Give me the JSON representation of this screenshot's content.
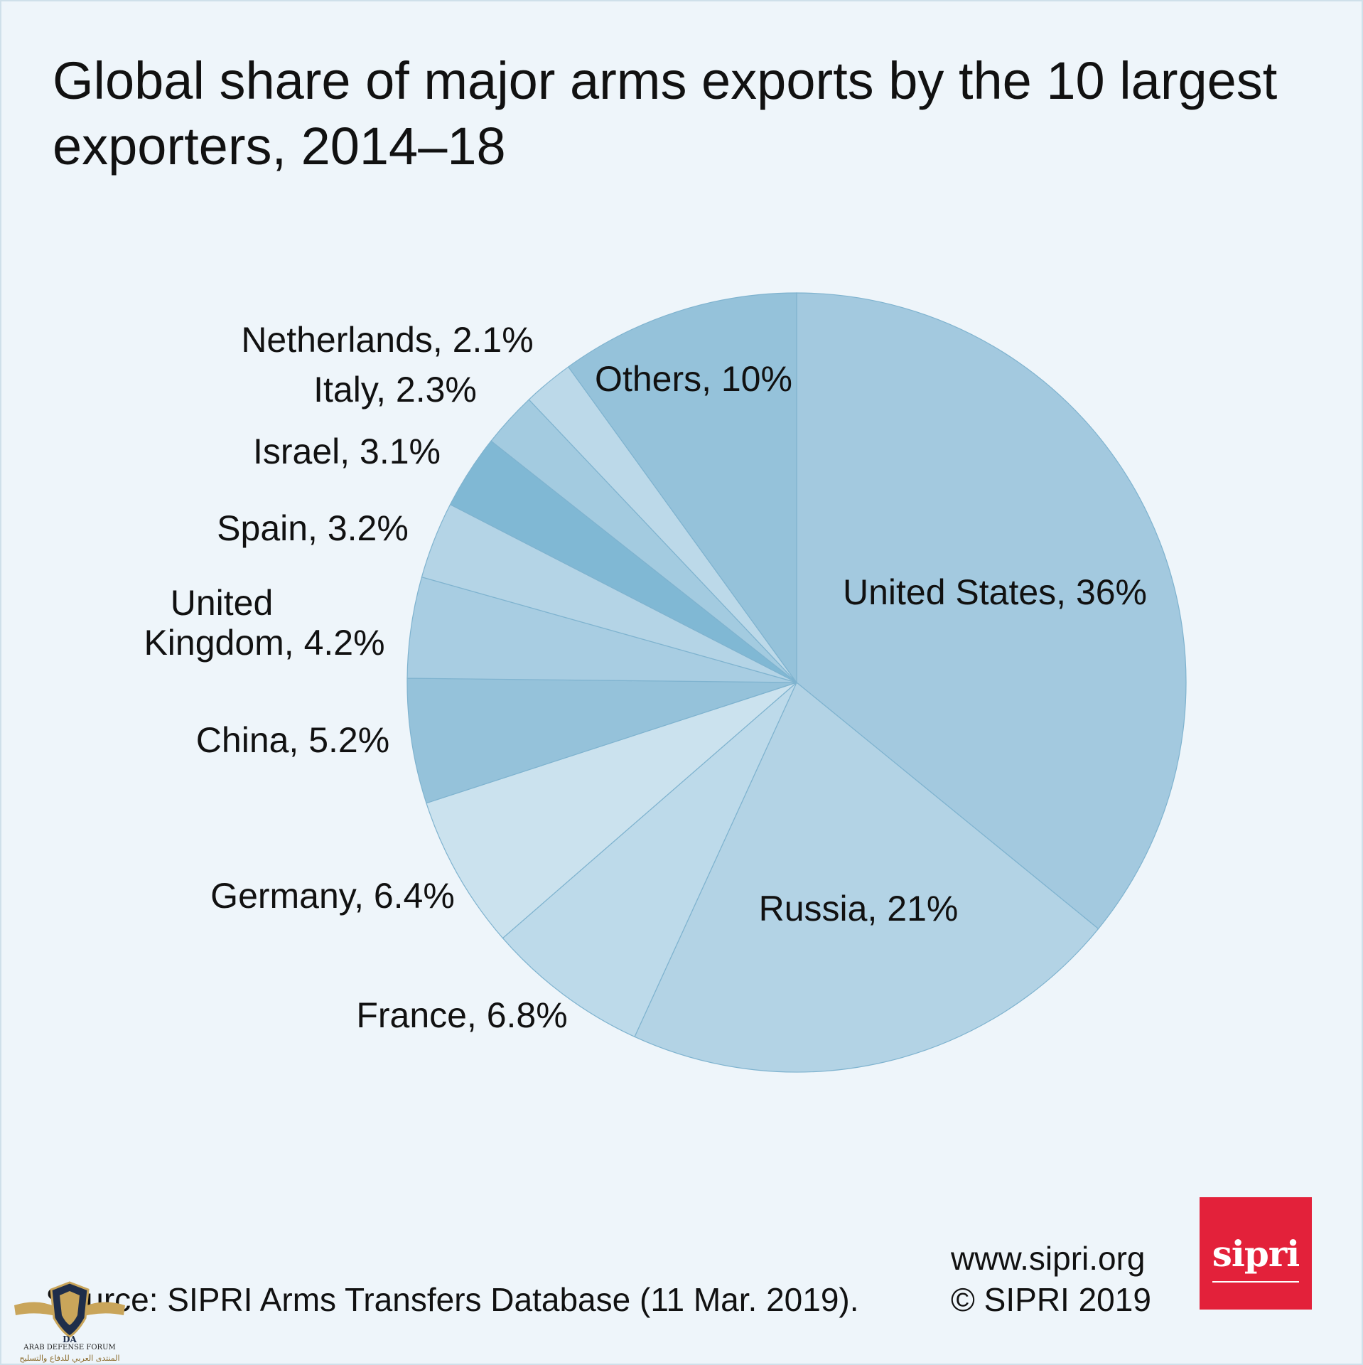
{
  "title": "Global share of major arms exports by the 10 largest exporters, 2014–18",
  "chart_data": {
    "type": "pie",
    "title": "Global share of major arms exports by the 10 largest exporters, 2014–18",
    "unit": "%",
    "slices": [
      {
        "label": "United States, 36%",
        "name": "United States",
        "value": 36,
        "color": "#a3c9df"
      },
      {
        "label": "Russia, 21%",
        "name": "Russia",
        "value": 21,
        "color": "#b3d3e5"
      },
      {
        "label": "France, 6.8%",
        "name": "France",
        "value": 6.8,
        "color": "#bddaea"
      },
      {
        "label": "Germany, 6.4%",
        "name": "Germany",
        "value": 6.4,
        "color": "#cbe2ee"
      },
      {
        "label": "China, 5.2%",
        "name": "China",
        "value": 5.2,
        "color": "#95c2da"
      },
      {
        "label": "United Kingdom, 4.2%",
        "name": "United Kingdom",
        "value": 4.2,
        "color": "#a8cde2"
      },
      {
        "label": "Spain, 3.2%",
        "name": "Spain",
        "value": 3.2,
        "color": "#b4d4e6"
      },
      {
        "label": "Israel, 3.1%",
        "name": "Israel",
        "value": 3.1,
        "color": "#80b8d4"
      },
      {
        "label": "Italy, 2.3%",
        "name": "Italy",
        "value": 2.3,
        "color": "#a3cbe0"
      },
      {
        "label": "Netherlands, 2.1%",
        "name": "Netherlands",
        "value": 2.1,
        "color": "#bcd9e9"
      },
      {
        "label": "Others, 10%",
        "name": "Others",
        "value": 10,
        "color": "#95c2da"
      }
    ]
  },
  "footer": {
    "source": "Source: SIPRI Arms Transfers Database (11 Mar. 2019).",
    "url": "www.sipri.org",
    "copyright": "© SIPRI 2019"
  },
  "logo": {
    "text": "sipri",
    "color": "#e3213a"
  },
  "watermark": {
    "text1": "ARAB DEFENSE FORUM",
    "text2": "المنتدى العربي للدفاع والتسليح"
  }
}
